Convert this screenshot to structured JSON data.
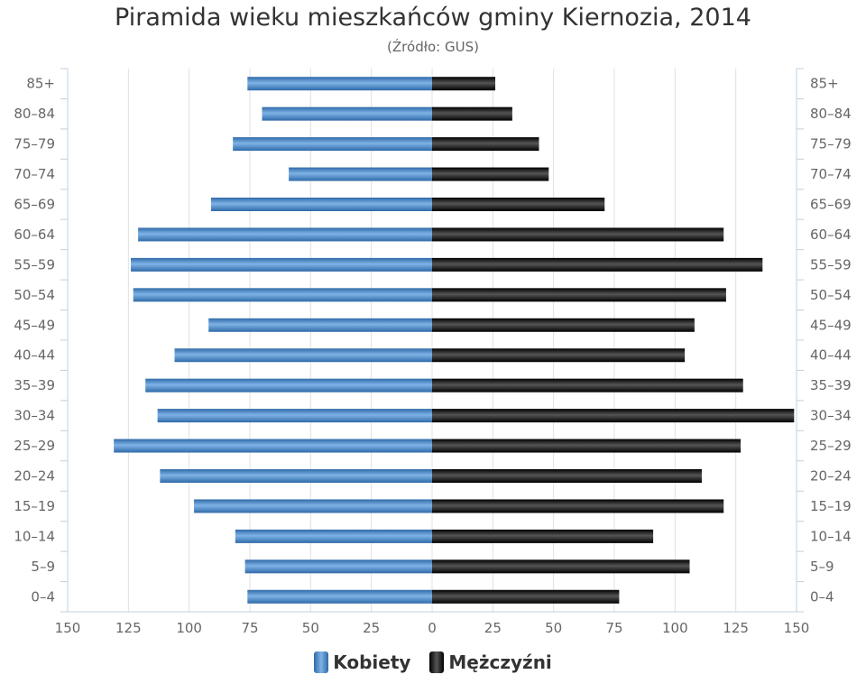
{
  "chart_data": {
    "type": "bar",
    "orientation": "horizontal",
    "title": "Piramida wieku mieszkańców gminy Kiernozia, 2014",
    "subtitle": "(Źródło: GUS)",
    "categories": [
      "0–4",
      "5–9",
      "10–14",
      "15–19",
      "20–24",
      "25–29",
      "30–34",
      "35–39",
      "40–44",
      "45–49",
      "50–54",
      "55–59",
      "60–64",
      "65–69",
      "70–74",
      "75–79",
      "80–84",
      "85+"
    ],
    "series": [
      {
        "name": "Kobiety",
        "values": [
          76,
          77,
          81,
          98,
          112,
          131,
          113,
          118,
          106,
          92,
          123,
          124,
          121,
          91,
          59,
          82,
          70,
          76
        ]
      },
      {
        "name": "Mężczyźni",
        "values": [
          77,
          106,
          91,
          120,
          111,
          127,
          149,
          128,
          104,
          108,
          121,
          136,
          120,
          71,
          48,
          44,
          33,
          26
        ]
      }
    ],
    "xticks": [
      "150",
      "125",
      "100",
      "75",
      "50",
      "25",
      "0",
      "25",
      "50",
      "75",
      "100",
      "125",
      "150"
    ],
    "xlim": [
      -150,
      150
    ],
    "grid": true,
    "legend_position": "bottom",
    "colors": {
      "Kobiety": "#4a86c5",
      "Mężczyźni": "#1e1e1e"
    }
  }
}
